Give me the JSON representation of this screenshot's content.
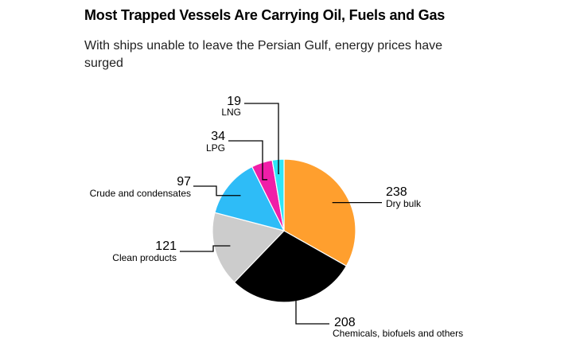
{
  "header": {
    "title": "Most Trapped Vessels Are Carrying Oil, Fuels and Gas",
    "subtitle": "With ships unable to leave the Persian Gulf, energy prices have surged"
  },
  "chart_data": {
    "type": "pie",
    "title": "Most Trapped Vessels Are Carrying Oil, Fuels and Gas",
    "subtitle": "With ships unable to leave the Persian Gulf, energy prices have surged",
    "start": "12 o'clock",
    "direction": "clockwise",
    "legend": "none",
    "slices": [
      {
        "label": "Dry bulk",
        "value": 238,
        "color": "#ff9f2e"
      },
      {
        "label": "Chemicals, biofuels and others",
        "value": 208,
        "color": "#000000"
      },
      {
        "label": "Clean products",
        "value": 121,
        "color": "#cccccc"
      },
      {
        "label": "Crude and condensates",
        "value": 97,
        "color": "#2ebcf7"
      },
      {
        "label": "LPG",
        "value": 34,
        "color": "#f01ea8"
      },
      {
        "label": "LNG",
        "value": 19,
        "color": "#2ee6f7"
      }
    ]
  }
}
